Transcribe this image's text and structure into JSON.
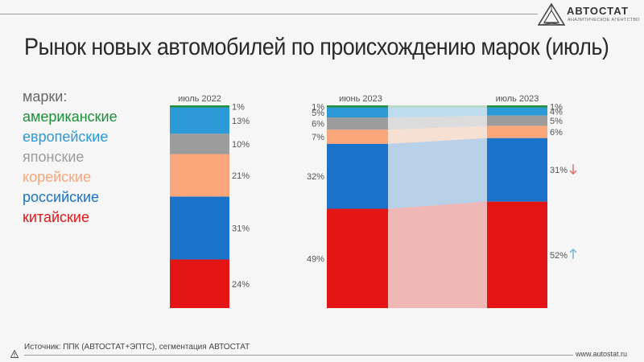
{
  "header": {
    "title": "Рынок новых автомобилей по происхождению марок (июль)",
    "logo_name": "АВТОСТАТ",
    "logo_sub": "аналитическое агентство"
  },
  "legend": {
    "heading": "марки:",
    "items": [
      {
        "label": "американские",
        "color": "#1d8f3a"
      },
      {
        "label": "европейские",
        "color": "#2c9ad6"
      },
      {
        "label": "японские",
        "color": "#9c9c9c"
      },
      {
        "label": "корейские",
        "color": "#f8a67a"
      },
      {
        "label": "российские",
        "color": "#1a73c9"
      },
      {
        "label": "китайские",
        "color": "#e31515"
      }
    ]
  },
  "chart_data": [
    {
      "type": "bar",
      "stacked": true,
      "categories": [
        "июль 2022"
      ],
      "series": [
        {
          "name": "американские",
          "values": [
            1
          ],
          "labels": [
            "1%"
          ]
        },
        {
          "name": "европейские",
          "values": [
            13
          ],
          "labels": [
            "13%"
          ]
        },
        {
          "name": "японские",
          "values": [
            10
          ],
          "labels": [
            "10%"
          ]
        },
        {
          "name": "корейские",
          "values": [
            21
          ],
          "labels": [
            "21%"
          ]
        },
        {
          "name": "российские",
          "values": [
            31
          ],
          "labels": [
            "31%"
          ]
        },
        {
          "name": "китайские",
          "values": [
            24
          ],
          "labels": [
            "24%"
          ]
        }
      ]
    },
    {
      "type": "bar",
      "stacked": true,
      "categories": [
        "июнь 2023",
        "июль 2023"
      ],
      "series": [
        {
          "name": "американские",
          "values": [
            1,
            1
          ],
          "labels": [
            "1%",
            "1%"
          ]
        },
        {
          "name": "европейские",
          "values": [
            5,
            4
          ],
          "labels": [
            "5%",
            "4%"
          ]
        },
        {
          "name": "японские",
          "values": [
            6,
            5
          ],
          "labels": [
            "6%",
            "5%"
          ]
        },
        {
          "name": "корейские",
          "values": [
            7,
            6
          ],
          "labels": [
            "7%",
            "6%"
          ]
        },
        {
          "name": "российские",
          "values": [
            32,
            31
          ],
          "labels": [
            "32%",
            "31%"
          ]
        },
        {
          "name": "китайские",
          "values": [
            49,
            52
          ],
          "labels": [
            "49%",
            "52%"
          ]
        }
      ],
      "trend": {
        "российские": "down",
        "китайские": "up"
      }
    }
  ],
  "footer": {
    "source": "Источник: ППК (АВТОСТАТ+ЭПТС), сегментация АВТОСТАТ",
    "url": "www.autostat.ru"
  },
  "colors": {
    "down_arrow": "#e06a6a",
    "up_arrow": "#6fb3d6"
  }
}
